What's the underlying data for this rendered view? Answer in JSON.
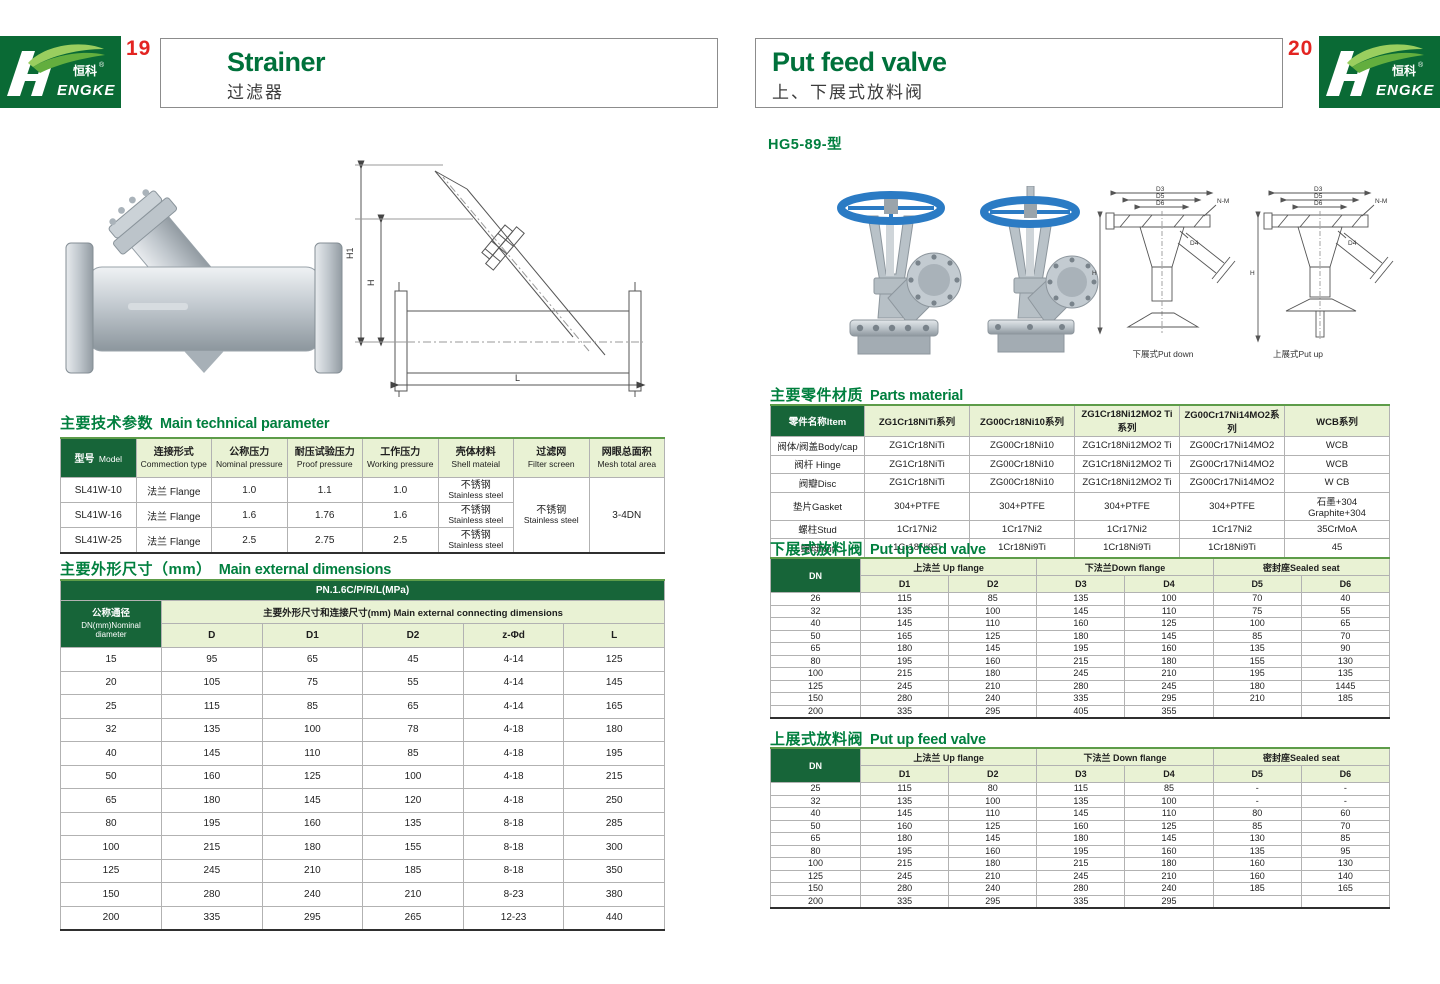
{
  "colors": {
    "brand_green": "#0a6a35",
    "title_green": "#007f3e",
    "accent_red": "#e32421",
    "table_header_green": "#176539",
    "table_header_light": "#e9f2d4",
    "handwheel_blue": "#2b7bc4"
  },
  "logo": {
    "cn": "恒科",
    "en": "ENGKE",
    "reg": "®"
  },
  "header": {
    "left_page_no": "19",
    "left_title_en": "Strainer",
    "left_title_cn": "过滤器",
    "right_title_en": "Put feed valve",
    "right_title_cn": "上、下展式放料阀",
    "right_page_no": "20"
  },
  "right_model": "HG5-89-型",
  "tech": {
    "title_cn": "主要技术参数",
    "title_en": "Main technical parameter",
    "headers": [
      {
        "cn": "型号",
        "en": "Model"
      },
      {
        "cn": "连接形式",
        "en": "Commection type"
      },
      {
        "cn": "公称压力",
        "en": "Nominal pressure"
      },
      {
        "cn": "耐压试验压力",
        "en": "Proof pressure"
      },
      {
        "cn": "工作压力",
        "en": "Working pressure"
      },
      {
        "cn": "壳体材料",
        "en": "Shell mateial"
      },
      {
        "cn": "过滤网",
        "en": "Filter screen"
      },
      {
        "cn": "网眼总面积",
        "en": "Mesh total area"
      }
    ],
    "rows": [
      {
        "model": "SL41W-10",
        "conn": "法兰 Flange",
        "nominal": "1.0",
        "proof": "1.1",
        "working": "1.0",
        "shell_cn": "不锈钢",
        "shell_en": "Stainless steel"
      },
      {
        "model": "SL41W-16",
        "conn": "法兰 Flange",
        "nominal": "1.6",
        "proof": "1.76",
        "working": "1.6",
        "shell_cn": "不锈钢",
        "shell_en": "Stainless steel"
      },
      {
        "model": "SL41W-25",
        "conn": "法兰 Flange",
        "nominal": "2.5",
        "proof": "2.75",
        "working": "2.5",
        "shell_cn": "不锈钢",
        "shell_en": "Stainless steel"
      }
    ],
    "filter_cn": "不锈钢",
    "filter_en": "Stainless steel",
    "mesh": "3-4DN"
  },
  "dims": {
    "title_cn": "主要外形尺寸（mm）",
    "title_en": "Main external dimensions",
    "pn": "PN.1.6C/P/R/L(MPa)",
    "col1": [
      "公称通径",
      "DN(mm)Nominal",
      "diameter"
    ],
    "group": "主要外形尺寸和连接尺寸(mm) Main external connecting dimensions",
    "cols": [
      "D",
      "D1",
      "D2",
      "z-Φd",
      "L"
    ],
    "rows": [
      [
        "15",
        "95",
        "65",
        "45",
        "4-14",
        "125"
      ],
      [
        "20",
        "105",
        "75",
        "55",
        "4-14",
        "145"
      ],
      [
        "25",
        "115",
        "85",
        "65",
        "4-14",
        "165"
      ],
      [
        "32",
        "135",
        "100",
        "78",
        "4-18",
        "180"
      ],
      [
        "40",
        "145",
        "110",
        "85",
        "4-18",
        "195"
      ],
      [
        "50",
        "160",
        "125",
        "100",
        "4-18",
        "215"
      ],
      [
        "65",
        "180",
        "145",
        "120",
        "4-18",
        "250"
      ],
      [
        "80",
        "195",
        "160",
        "135",
        "8-18",
        "285"
      ],
      [
        "100",
        "215",
        "180",
        "155",
        "8-18",
        "300"
      ],
      [
        "125",
        "245",
        "210",
        "185",
        "8-18",
        "350"
      ],
      [
        "150",
        "280",
        "240",
        "210",
        "8-23",
        "380"
      ],
      [
        "200",
        "335",
        "295",
        "265",
        "12-23",
        "440"
      ]
    ]
  },
  "parts": {
    "title_cn": "主要零件材质",
    "title_en": "Parts material",
    "headers": [
      "零件名称Item",
      "ZG1Cr18NiTi系列",
      "ZG00Cr18Ni10系列",
      "ZG1Cr18Ni12MO2 Ti系列",
      "ZG00Cr17Ni14MO2系列",
      "WCB系列"
    ],
    "rows": [
      [
        "阀体/阀盖Body/cap",
        "ZG1Cr18NiTi",
        "ZG00Cr18Ni10",
        "ZG1Cr18Ni12MO2 Ti",
        "ZG00Cr17Ni14MO2",
        "WCB"
      ],
      [
        "阀杆 Hinge",
        "ZG1Cr18NiTi",
        "ZG00Cr18Ni10",
        "ZG1Cr18Ni12MO2 Ti",
        "ZG00Cr17Ni14MO2",
        "WCB"
      ],
      [
        "阀瓣Disc",
        "ZG1Cr18NiTi",
        "ZG00Cr18Ni10",
        "ZG1Cr18Ni12MO2 Ti",
        "ZG00Cr17Ni14MO2",
        "W CB"
      ],
      [
        "垫片Gasket",
        "304+PTFE",
        "304+PTFE",
        "304+PTFE",
        "304+PTFE",
        "石墨+304 Graphite+304"
      ],
      [
        "螺柱Stud",
        "1Cr17Ni2",
        "1Cr17Ni2",
        "1Cr17Ni2",
        "1Cr17Ni2",
        "35CrMoA"
      ],
      [
        "螺母Nut",
        "1Cr18Ni9Ti",
        "1Cr18Ni9Ti",
        "1Cr18Ni9Ti",
        "1Cr18Ni9Ti",
        "45"
      ]
    ]
  },
  "down": {
    "title_cn": "下展式放料阀",
    "title_en": "Put up feed valve",
    "dn": "DN",
    "groups": [
      "上法兰 Up flange",
      "下法兰Down flange",
      "密封座Sealed seat"
    ],
    "cols": [
      "D1",
      "D2",
      "D3",
      "D4",
      "D5",
      "D6"
    ],
    "rows": [
      [
        "26",
        "115",
        "85",
        "135",
        "100",
        "70",
        "40"
      ],
      [
        "32",
        "135",
        "100",
        "145",
        "110",
        "75",
        "55"
      ],
      [
        "40",
        "145",
        "110",
        "160",
        "125",
        "100",
        "65"
      ],
      [
        "50",
        "165",
        "125",
        "180",
        "145",
        "85",
        "70"
      ],
      [
        "65",
        "180",
        "145",
        "195",
        "160",
        "135",
        "90"
      ],
      [
        "80",
        "195",
        "160",
        "215",
        "180",
        "155",
        "130"
      ],
      [
        "100",
        "215",
        "180",
        "245",
        "210",
        "195",
        "135"
      ],
      [
        "125",
        "245",
        "210",
        "280",
        "245",
        "180",
        "1445"
      ],
      [
        "150",
        "280",
        "240",
        "335",
        "295",
        "210",
        "185"
      ],
      [
        "200",
        "335",
        "295",
        "405",
        "355",
        "",
        ""
      ]
    ]
  },
  "up": {
    "title_cn": "上展式放料阀",
    "title_en": "Put up feed valve",
    "dn": "DN",
    "groups": [
      "上法兰 Up flange",
      "下法兰 Down flange",
      "密封座Sealed seat"
    ],
    "cols": [
      "D1",
      "D2",
      "D3",
      "D4",
      "D5",
      "D6"
    ],
    "rows": [
      [
        "25",
        "115",
        "80",
        "115",
        "85",
        "-",
        "-"
      ],
      [
        "32",
        "135",
        "100",
        "135",
        "100",
        "-",
        "-"
      ],
      [
        "40",
        "145",
        "110",
        "145",
        "110",
        "80",
        "60"
      ],
      [
        "50",
        "160",
        "125",
        "160",
        "125",
        "85",
        "70"
      ],
      [
        "65",
        "180",
        "145",
        "180",
        "145",
        "130",
        "85"
      ],
      [
        "80",
        "195",
        "160",
        "195",
        "160",
        "135",
        "95"
      ],
      [
        "100",
        "215",
        "180",
        "215",
        "180",
        "160",
        "130"
      ],
      [
        "125",
        "245",
        "210",
        "245",
        "210",
        "160",
        "140"
      ],
      [
        "150",
        "280",
        "240",
        "280",
        "240",
        "185",
        "165"
      ],
      [
        "200",
        "335",
        "295",
        "335",
        "295",
        "",
        ""
      ]
    ]
  },
  "drawings": {
    "strainer": {
      "h1": "H1",
      "h": "H",
      "l": "L"
    },
    "valve": {
      "d3": "D3",
      "d5": "D5",
      "d6": "D6",
      "nm": "N-M",
      "d4": "D4",
      "h": "H"
    },
    "caption_down": "下展式Put down",
    "caption_up": "上展式Put up"
  }
}
